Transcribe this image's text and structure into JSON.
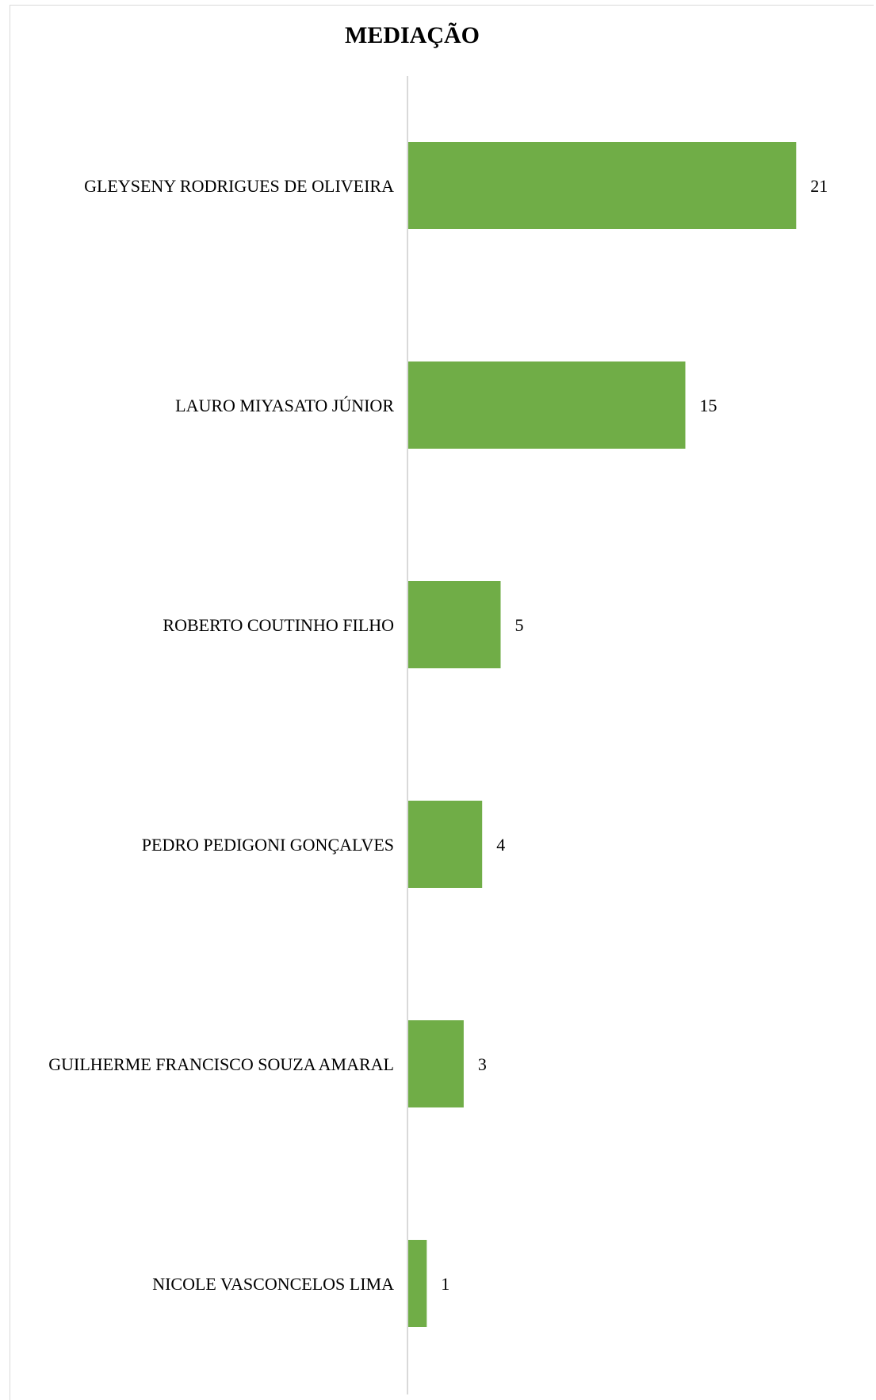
{
  "chart_data": {
    "type": "bar",
    "orientation": "horizontal",
    "title": "MEDIAÇÃO",
    "categories": [
      "GLEYSENY RODRIGUES DE OLIVEIRA",
      "LAURO MIYASATO JÚNIOR",
      "ROBERTO COUTINHO FILHO",
      "PEDRO PEDIGONI GONÇALVES",
      "GUILHERME FRANCISCO SOUZA AMARAL",
      "NICOLE VASCONCELOS LIMA"
    ],
    "values": [
      21,
      15,
      5,
      4,
      3,
      1
    ],
    "xlim": [
      0,
      26
    ],
    "grid": false,
    "legend": "none",
    "data_labels": true,
    "bar_color": "#70ad47",
    "axis_color": "#d9d9d9"
  }
}
